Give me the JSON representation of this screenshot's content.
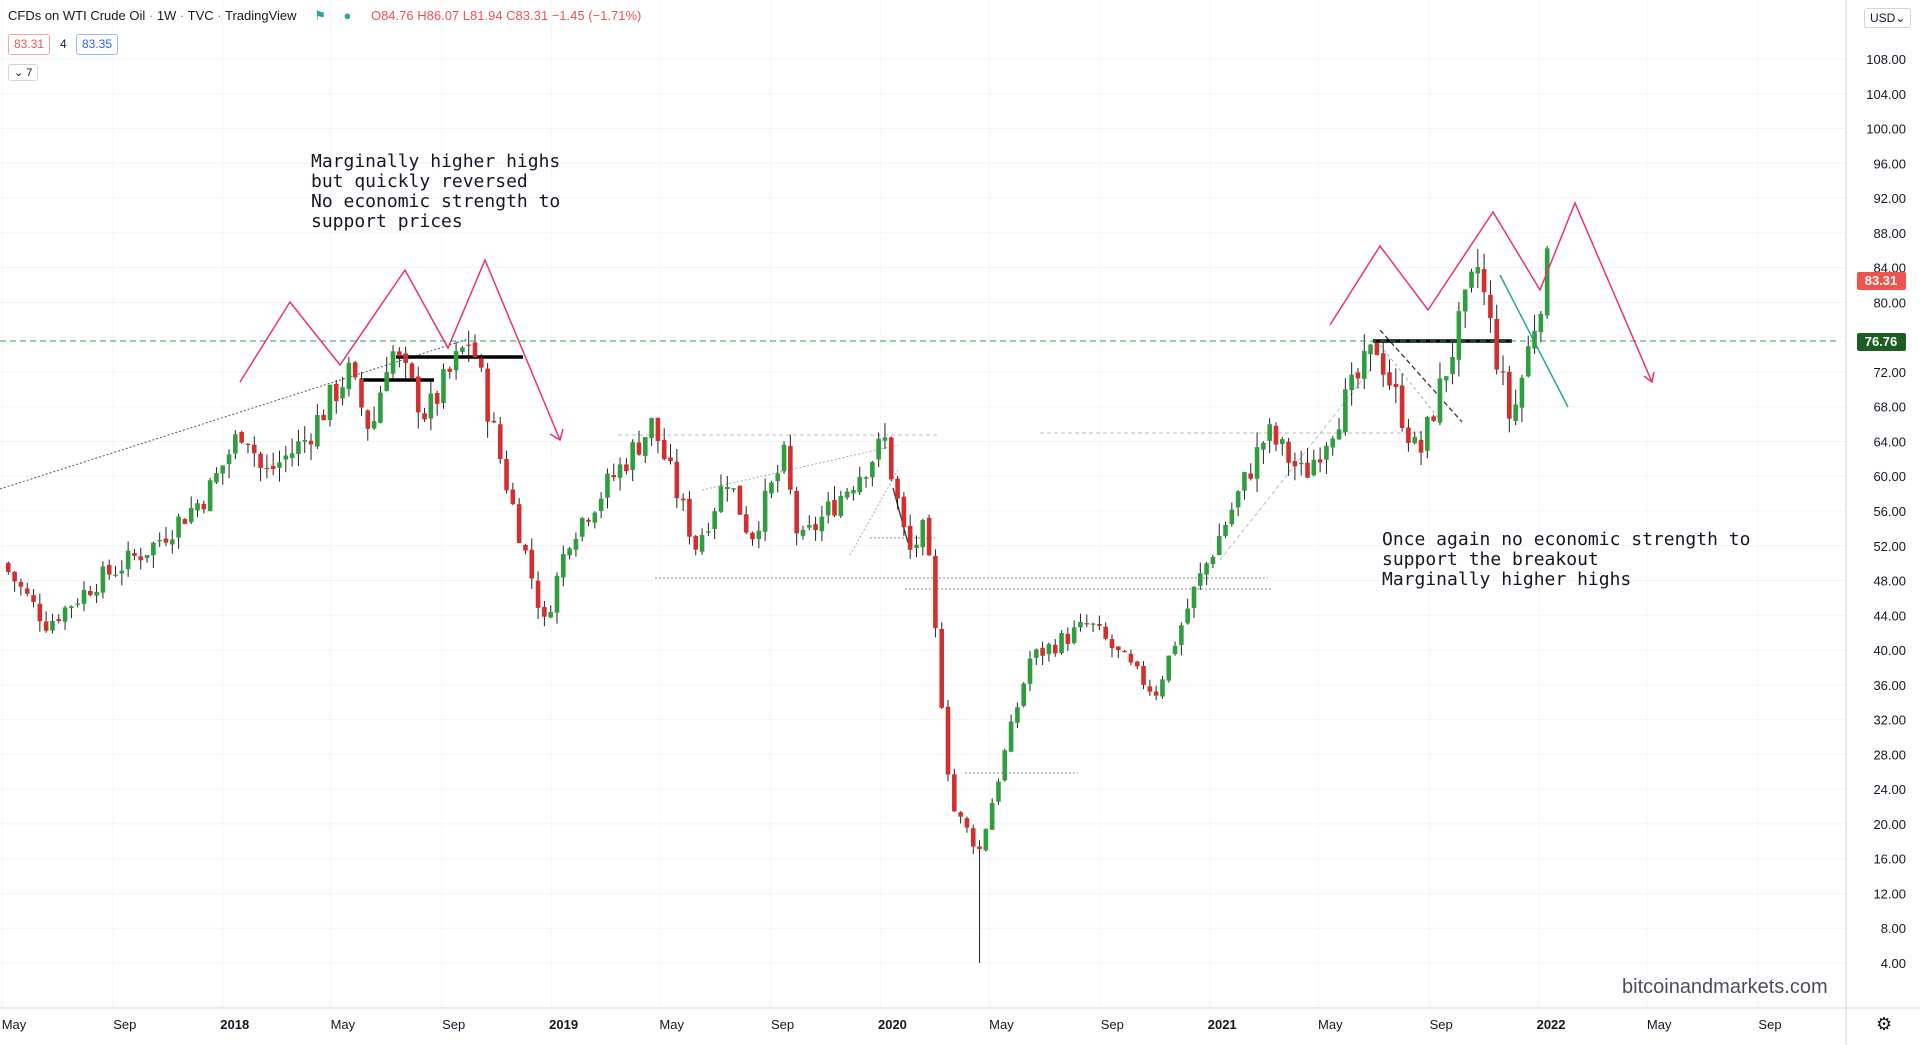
{
  "header": {
    "symbol": "CFDs on WTI Crude Oil",
    "interval": "1W",
    "exchange": "TVC",
    "source": "TradingView",
    "open": "O84.76",
    "high": "H86.07",
    "low": "L81.94",
    "close": "C83.31",
    "change": "−1.45 (−1.71%)",
    "sell_price": "83.31",
    "spread": "4",
    "buy_price": "83.35",
    "collapse_label": "7"
  },
  "currency": "USD",
  "watermark": "bitcoinandmarkets.com",
  "annotations": {
    "left_note": "Marginally higher highs\nbut quickly reversed\nNo economic strength to\nsupport prices",
    "right_note": "Once again no economic strength to\nsupport the breakout\nMarginally higher highs"
  },
  "colors": {
    "up": "#26a69a",
    "bullish_candle": "#2e9e3e",
    "bearish_candle": "#d32f2f",
    "projection": "#e8336d",
    "support_line": "#22a04b",
    "last_price_label": "#ef5350"
  },
  "chart_data": {
    "type": "candlestick",
    "interval": "1W",
    "x_range": [
      "2017-05",
      "2022-11"
    ],
    "ylim": [
      4,
      110
    ],
    "y_ticks": [
      4,
      8,
      12,
      16,
      20,
      24,
      28,
      32,
      36,
      40,
      44,
      48,
      52,
      56,
      60,
      64,
      68,
      72,
      76,
      80,
      84,
      88,
      92,
      96,
      100,
      104,
      108
    ],
    "y_tick_labels": [
      "4.00",
      "8.00",
      "12.00",
      "16.00",
      "20.00",
      "24.00",
      "28.00",
      "32.00",
      "36.00",
      "40.00",
      "44.00",
      "48.00",
      "52.00",
      "56.00",
      "60.00",
      "64.00",
      "68.00",
      "72.00",
      "76.00",
      "80.00",
      "84.00",
      "88.00",
      "92.00",
      "96.00",
      "100.00",
      "104.00",
      "108.00"
    ],
    "x_ticks": [
      {
        "label": "May",
        "date": "2017-05-01"
      },
      {
        "label": "Sep",
        "date": "2017-09-01"
      },
      {
        "label": "2018",
        "date": "2018-01-01"
      },
      {
        "label": "May",
        "date": "2018-05-01"
      },
      {
        "label": "Sep",
        "date": "2018-09-01"
      },
      {
        "label": "2019",
        "date": "2019-01-01"
      },
      {
        "label": "May",
        "date": "2019-05-01"
      },
      {
        "label": "Sep",
        "date": "2019-09-01"
      },
      {
        "label": "2020",
        "date": "2020-01-01"
      },
      {
        "label": "May",
        "date": "2020-05-01"
      },
      {
        "label": "Sep",
        "date": "2020-09-01"
      },
      {
        "label": "2021",
        "date": "2021-01-01"
      },
      {
        "label": "May",
        "date": "2021-05-01"
      },
      {
        "label": "Sep",
        "date": "2021-09-01"
      },
      {
        "label": "2022",
        "date": "2022-01-01"
      },
      {
        "label": "May",
        "date": "2022-05-01"
      },
      {
        "label": "Sep",
        "date": "2022-09-01"
      }
    ],
    "bold_ticks": [
      "2018",
      "2019",
      "2020",
      "2021",
      "2022"
    ],
    "price_path": [
      {
        "date": "2017-05-01",
        "close": 50
      },
      {
        "date": "2017-06-20",
        "close": 43
      },
      {
        "date": "2017-08-15",
        "close": 48
      },
      {
        "date": "2017-10-15",
        "close": 52
      },
      {
        "date": "2017-12-15",
        "close": 58
      },
      {
        "date": "2018-01-25",
        "close": 66
      },
      {
        "date": "2018-02-15",
        "close": 60
      },
      {
        "date": "2018-04-01",
        "close": 64
      },
      {
        "date": "2018-05-20",
        "close": 72
      },
      {
        "date": "2018-06-15",
        "close": 65
      },
      {
        "date": "2018-07-05",
        "close": 75
      },
      {
        "date": "2018-08-15",
        "close": 67
      },
      {
        "date": "2018-10-03",
        "close": 76
      },
      {
        "date": "2018-11-10",
        "close": 60
      },
      {
        "date": "2018-12-24",
        "close": 43
      },
      {
        "date": "2019-01-20",
        "close": 53
      },
      {
        "date": "2019-04-23",
        "close": 66
      },
      {
        "date": "2019-06-10",
        "close": 52
      },
      {
        "date": "2019-07-15",
        "close": 60
      },
      {
        "date": "2019-08-10",
        "close": 53
      },
      {
        "date": "2019-09-16",
        "close": 62
      },
      {
        "date": "2019-10-03",
        "close": 52
      },
      {
        "date": "2020-01-06",
        "close": 64
      },
      {
        "date": "2020-02-01",
        "close": 51
      },
      {
        "date": "2020-02-20",
        "close": 54
      },
      {
        "date": "2020-03-20",
        "close": 22
      },
      {
        "date": "2020-04-20",
        "close": 17
      },
      {
        "date": "2020-05-15",
        "close": 27
      },
      {
        "date": "2020-06-15",
        "close": 39
      },
      {
        "date": "2020-08-20",
        "close": 43
      },
      {
        "date": "2020-11-01",
        "close": 35
      },
      {
        "date": "2020-12-15",
        "close": 47
      },
      {
        "date": "2021-03-05",
        "close": 65
      },
      {
        "date": "2021-04-15",
        "close": 60
      },
      {
        "date": "2021-07-05",
        "close": 75
      },
      {
        "date": "2021-08-20",
        "close": 62
      },
      {
        "date": "2021-10-25",
        "close": 84
      },
      {
        "date": "2021-12-01",
        "close": 66
      },
      {
        "date": "2022-01-10",
        "close": 84
      }
    ],
    "last_price": 83.31,
    "support_level": 76.76,
    "extreme_low": 4.0,
    "extreme_low_date": "2020-04-20"
  }
}
